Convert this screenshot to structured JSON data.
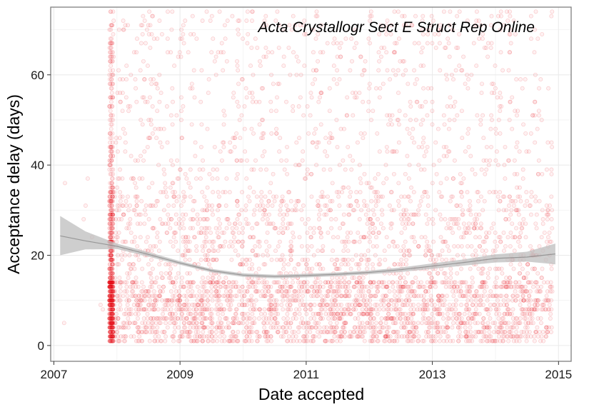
{
  "chart_data": {
    "type": "scatter",
    "title": "",
    "annotation": "Acta Crystallogr Sect E Struct Rep Online",
    "xlabel": "Date accepted",
    "ylabel": "Acceptance delay (days)",
    "xlim": [
      2006.95,
      2015.2
    ],
    "ylim": [
      -3.5,
      75
    ],
    "x_ticks": [
      2007,
      2009,
      2011,
      2013,
      2015
    ],
    "y_ticks": [
      0,
      20,
      40,
      60
    ],
    "grid": true,
    "legend": "none",
    "point_color": "#e8161b",
    "smooth_band_color": "#bdbdbd",
    "smooth_line_color": "#737373",
    "points_description_x_range": [
      2007.8,
      2014.9
    ],
    "smooth": {
      "x": [
        2007.1,
        2007.5,
        2008.0,
        2008.5,
        2009.0,
        2009.5,
        2010.0,
        2010.5,
        2011.0,
        2011.5,
        2012.0,
        2012.5,
        2013.0,
        2013.5,
        2014.0,
        2014.5,
        2014.95
      ],
      "y": [
        24.3,
        23.2,
        22.0,
        20.2,
        18.3,
        16.6,
        15.6,
        15.3,
        15.5,
        15.8,
        16.2,
        16.8,
        17.6,
        18.4,
        19.3,
        19.6,
        20.3
      ],
      "lower": [
        20.0,
        21.3,
        21.4,
        19.7,
        17.9,
        16.2,
        15.2,
        14.9,
        15.1,
        15.4,
        15.8,
        16.3,
        17.0,
        17.7,
        18.4,
        18.6,
        18.0
      ],
      "upper": [
        28.7,
        25.3,
        22.6,
        20.7,
        18.7,
        17.0,
        16.0,
        15.7,
        15.9,
        16.2,
        16.6,
        17.3,
        18.2,
        19.1,
        20.2,
        20.8,
        22.6
      ]
    }
  }
}
